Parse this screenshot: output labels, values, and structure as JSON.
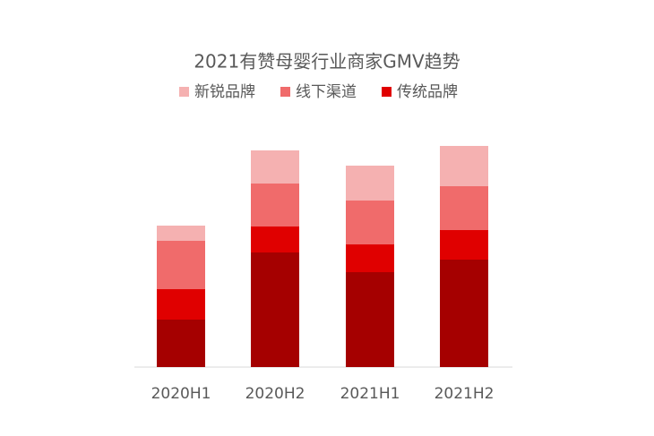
{
  "chart_data": {
    "type": "stacked_bar",
    "title": "2021有赞母婴行业商家GMV趋势",
    "categories": [
      "2020H1",
      "2020H2",
      "2021H1",
      "2021H2"
    ],
    "series": [
      {
        "name": null,
        "color": "#a50000",
        "values": [
          53,
          128,
          106,
          120
        ]
      },
      {
        "name": "传统品牌",
        "color": "#e00000",
        "values": [
          34,
          29,
          31,
          33
        ]
      },
      {
        "name": "线下渠道",
        "color": "#f06b6b",
        "values": [
          54,
          48,
          49,
          49
        ]
      },
      {
        "name": "新锐品牌",
        "color": "#f5b1b1",
        "values": [
          17,
          37,
          39,
          45
        ]
      }
    ],
    "ylim": [
      0,
      260
    ]
  }
}
